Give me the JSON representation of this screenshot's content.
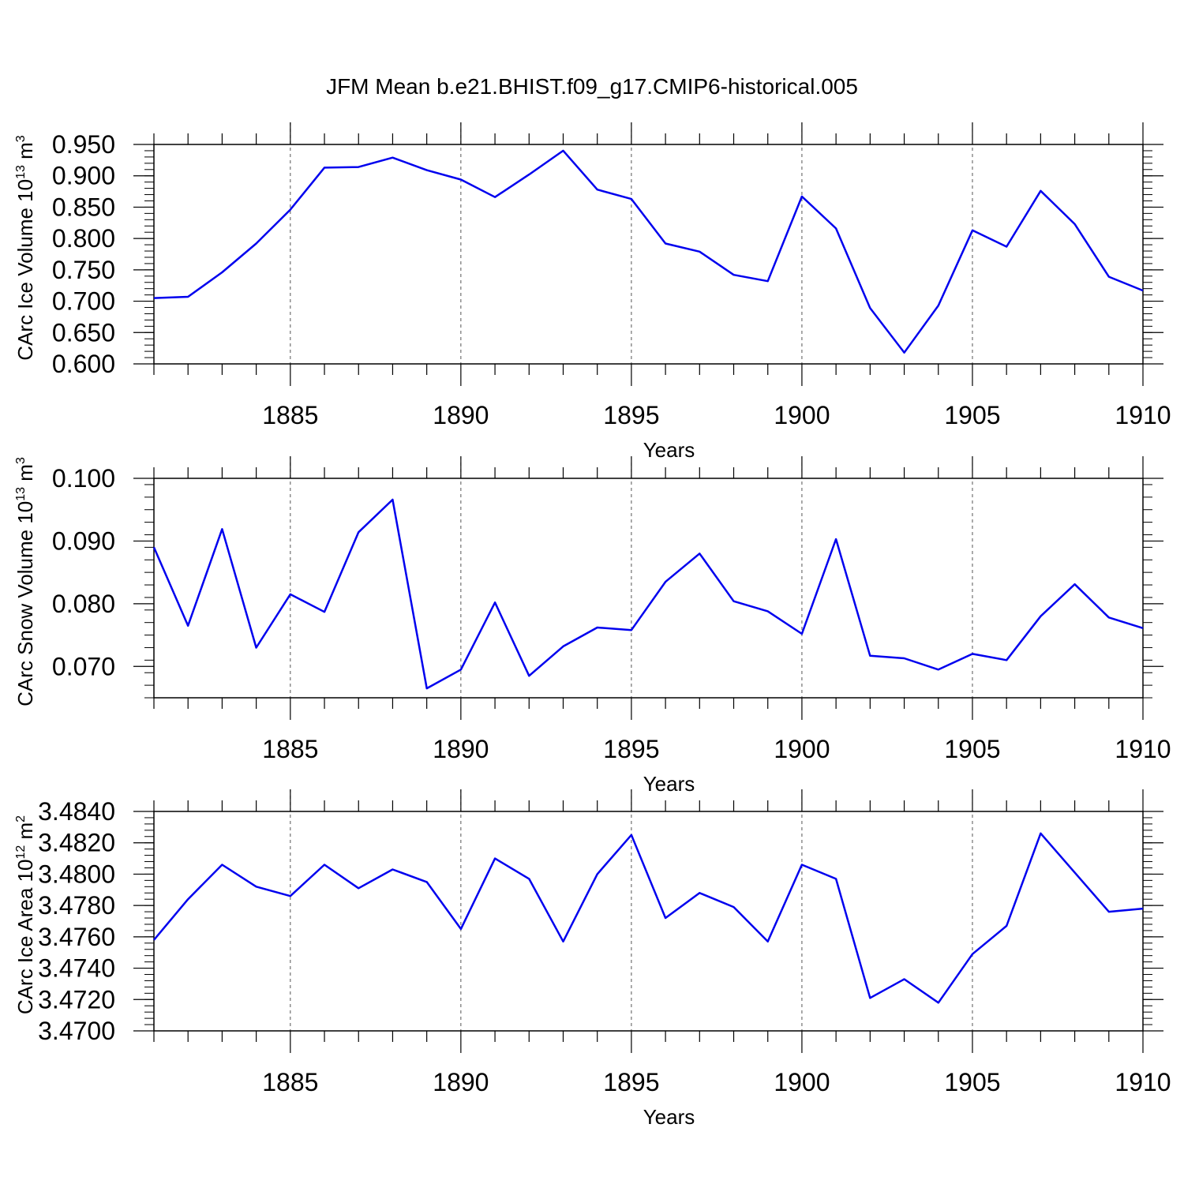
{
  "title": "JFM Mean b.e21.BHIST.f09_g17.CMIP6-historical.005",
  "colors": {
    "line": "#0000ee",
    "axis": "#000000",
    "grid": "#555555"
  },
  "chart_data": [
    {
      "type": "line",
      "ylabel": {
        "base": "CArc Ice Volume 10",
        "exp": "13",
        "unit": " m",
        "unit_exp": "3"
      },
      "xlabel": "Years",
      "xlim": [
        1881,
        1910
      ],
      "ylim": [
        0.6,
        0.95
      ],
      "ytick_values": [
        0.6,
        0.65,
        0.7,
        0.75,
        0.8,
        0.85,
        0.9,
        0.95
      ],
      "ytick_labels": [
        "0.600",
        "0.650",
        "0.700",
        "0.750",
        "0.800",
        "0.850",
        "0.900",
        "0.950"
      ],
      "xtick_labels": [
        "1885",
        "1890",
        "1895",
        "1900",
        "1905",
        "1910"
      ],
      "x": [
        1881,
        1882,
        1883,
        1884,
        1885,
        1886,
        1887,
        1888,
        1889,
        1890,
        1891,
        1892,
        1893,
        1894,
        1895,
        1896,
        1897,
        1898,
        1899,
        1900,
        1901,
        1902,
        1903,
        1904,
        1905,
        1906,
        1907,
        1908,
        1909,
        1910
      ],
      "values": [
        0.705,
        0.707,
        0.746,
        0.792,
        0.846,
        0.913,
        0.914,
        0.929,
        0.909,
        0.894,
        0.866,
        0.902,
        0.94,
        0.878,
        0.863,
        0.792,
        0.779,
        0.742,
        0.732,
        0.867,
        0.816,
        0.689,
        0.618,
        0.693,
        0.813,
        0.787,
        0.876,
        0.823,
        0.739,
        0.717
      ]
    },
    {
      "type": "line",
      "ylabel": {
        "base": "CArc Snow Volume 10",
        "exp": "13",
        "unit": " m",
        "unit_exp": "3"
      },
      "xlabel": "Years",
      "xlim": [
        1881,
        1910
      ],
      "ylim": [
        0.065,
        0.1
      ],
      "ytick_values": [
        0.07,
        0.08,
        0.09,
        0.1
      ],
      "ytick_labels": [
        "0.070",
        "0.080",
        "0.090",
        "0.100"
      ],
      "xtick_labels": [
        "1885",
        "1890",
        "1895",
        "1900",
        "1905",
        "1910"
      ],
      "x": [
        1881,
        1882,
        1883,
        1884,
        1885,
        1886,
        1887,
        1888,
        1889,
        1890,
        1891,
        1892,
        1893,
        1894,
        1895,
        1896,
        1897,
        1898,
        1899,
        1900,
        1901,
        1902,
        1903,
        1904,
        1905,
        1906,
        1907,
        1908,
        1909,
        1910
      ],
      "values": [
        0.089,
        0.0765,
        0.0919,
        0.073,
        0.0815,
        0.0787,
        0.0914,
        0.0966,
        0.0665,
        0.0695,
        0.0802,
        0.0685,
        0.0732,
        0.0762,
        0.0758,
        0.0835,
        0.088,
        0.0804,
        0.0788,
        0.0752,
        0.0903,
        0.0717,
        0.0713,
        0.0695,
        0.072,
        0.071,
        0.078,
        0.0831,
        0.0778,
        0.0761
      ]
    },
    {
      "type": "line",
      "ylabel": {
        "base": "CArc Ice Area 10",
        "exp": "12",
        "unit": " m",
        "unit_exp": "2"
      },
      "xlabel": "Years",
      "xlim": [
        1881,
        1910
      ],
      "ylim": [
        3.47,
        3.484
      ],
      "ytick_values": [
        3.47,
        3.472,
        3.474,
        3.476,
        3.478,
        3.48,
        3.482,
        3.484
      ],
      "ytick_labels": [
        "3.4700",
        "3.4720",
        "3.4740",
        "3.4760",
        "3.4780",
        "3.4800",
        "3.4820",
        "3.4840"
      ],
      "xtick_labels": [
        "1885",
        "1890",
        "1895",
        "1900",
        "1905",
        "1910"
      ],
      "x": [
        1881,
        1882,
        1883,
        1884,
        1885,
        1886,
        1887,
        1888,
        1889,
        1890,
        1891,
        1892,
        1893,
        1894,
        1895,
        1896,
        1897,
        1898,
        1899,
        1900,
        1901,
        1902,
        1903,
        1904,
        1905,
        1906,
        1907,
        1908,
        1909,
        1910
      ],
      "values": [
        3.4758,
        3.4784,
        3.4806,
        3.4792,
        3.4786,
        3.4806,
        3.4791,
        3.4803,
        3.4795,
        3.4765,
        3.481,
        3.4797,
        3.4757,
        3.48,
        3.4825,
        3.4772,
        3.4788,
        3.4779,
        3.4757,
        3.4806,
        3.4797,
        3.4721,
        3.4733,
        3.4718,
        3.4749,
        3.4767,
        3.4826,
        3.4801,
        3.4776,
        3.4778
      ]
    }
  ]
}
